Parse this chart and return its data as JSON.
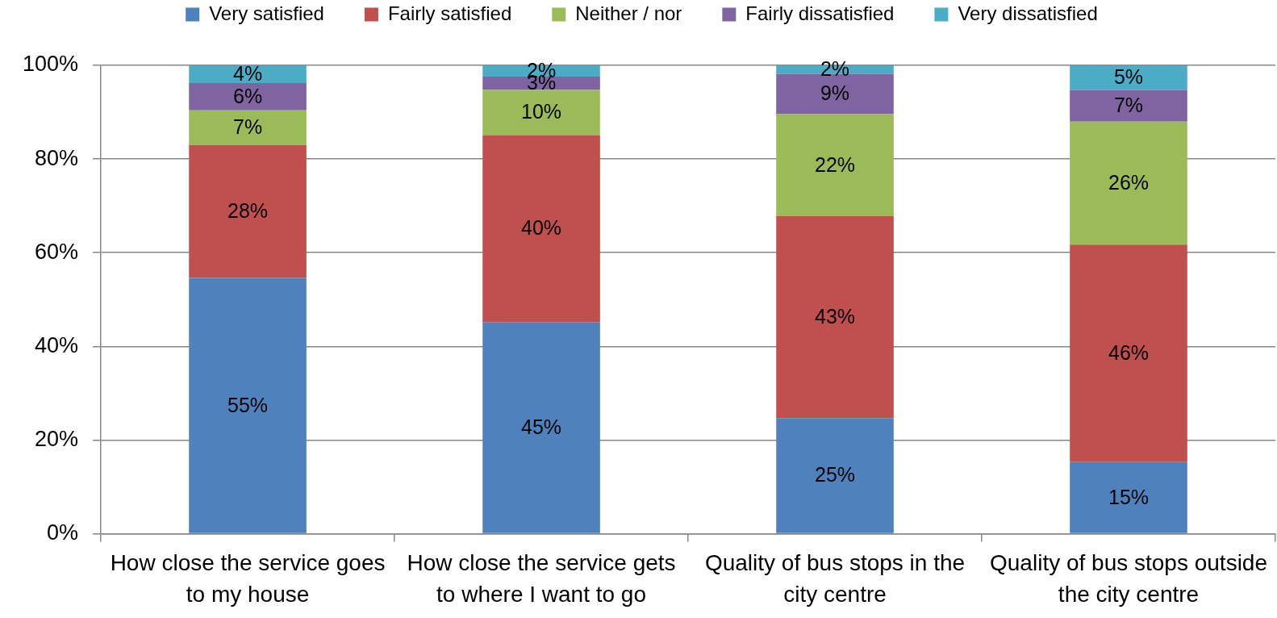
{
  "chart_data": {
    "type": "bar",
    "stacked": true,
    "categories": [
      "How close the service goes to my house",
      "How close the service gets to where I want to go",
      "Quality of bus stops in the city centre",
      "Quality of bus stops outside the city centre"
    ],
    "series": [
      {
        "name": "Very satisfied",
        "color": "#4f81bd",
        "values": [
          54.6,
          45.2,
          24.7,
          15.3
        ],
        "value_labels": [
          "55%",
          "45%",
          "25%",
          "15%"
        ]
      },
      {
        "name": "Fairly satisfied",
        "color": "#c0504d",
        "values": [
          28.4,
          39.9,
          43.1,
          46.4
        ],
        "value_labels": [
          "28%",
          "40%",
          "43%",
          "46%"
        ]
      },
      {
        "name": "Neither / nor",
        "color": "#9bbb59",
        "values": [
          7.4,
          9.7,
          21.8,
          26.3
        ],
        "value_labels": [
          "7%",
          "10%",
          "22%",
          "26%"
        ]
      },
      {
        "name": "Fairly dissatisfied",
        "color": "#8064a2",
        "values": [
          5.8,
          2.8,
          8.6,
          6.7
        ],
        "value_labels": [
          "6%",
          "3%",
          "9%",
          "7%"
        ]
      },
      {
        "name": "Very dissatisfied",
        "color": "#4bacc6",
        "values": [
          3.8,
          2.4,
          1.8,
          5.3
        ],
        "value_labels": [
          "4%",
          "2%",
          "2%",
          "5%"
        ]
      }
    ],
    "ylim": [
      0,
      100
    ],
    "yticks": [
      {
        "value": 0,
        "label": "0%"
      },
      {
        "value": 20,
        "label": "20%"
      },
      {
        "value": 40,
        "label": "40%"
      },
      {
        "value": 60,
        "label": "60%"
      },
      {
        "value": 80,
        "label": "80%"
      },
      {
        "value": 100,
        "label": "100%"
      }
    ],
    "grid": "y",
    "legend": "top"
  }
}
